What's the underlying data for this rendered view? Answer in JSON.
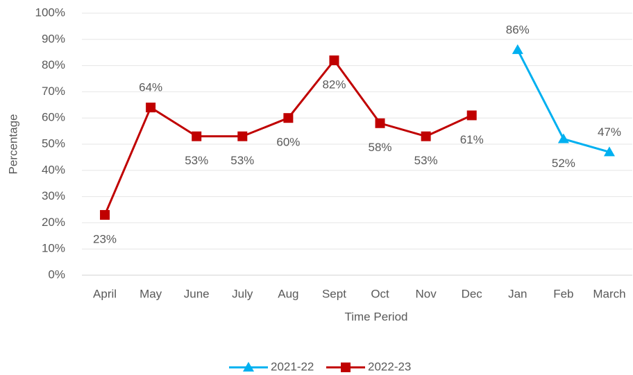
{
  "chart_data": {
    "type": "line",
    "x_label": "Time Period",
    "y_label": "Percentage",
    "categories": [
      "April",
      "May",
      "June",
      "July",
      "Aug",
      "Sept",
      "Oct",
      "Nov",
      "Dec",
      "Jan",
      "Feb",
      "March"
    ],
    "series": [
      {
        "name": "2021-22",
        "color": "#00b0f0",
        "marker": "triangle",
        "values": [
          null,
          null,
          null,
          null,
          null,
          null,
          null,
          null,
          null,
          86,
          52,
          47
        ],
        "value_labels": [
          null,
          null,
          null,
          null,
          null,
          null,
          null,
          null,
          null,
          "86%",
          "52%",
          "47%"
        ]
      },
      {
        "name": "2022-23",
        "color": "#c00000",
        "marker": "square",
        "values": [
          23,
          64,
          53,
          53,
          60,
          82,
          58,
          53,
          61,
          null,
          null,
          null
        ],
        "value_labels": [
          "23%",
          "64%",
          "53%",
          "53%",
          "60%",
          "82%",
          "58%",
          "53%",
          "61%",
          null,
          null,
          null
        ]
      }
    ],
    "ylim": [
      0,
      100
    ],
    "yticks": [
      {
        "value": 0,
        "label": "0%"
      },
      {
        "value": 10,
        "label": "10%"
      },
      {
        "value": 20,
        "label": "20%"
      },
      {
        "value": 30,
        "label": "30%"
      },
      {
        "value": 40,
        "label": "40%"
      },
      {
        "value": 50,
        "label": "50%"
      },
      {
        "value": 60,
        "label": "60%"
      },
      {
        "value": 70,
        "label": "70%"
      },
      {
        "value": 80,
        "label": "80%"
      },
      {
        "value": 90,
        "label": "90%"
      },
      {
        "value": 100,
        "label": "100%"
      }
    ],
    "grid": true,
    "legend": "bottom"
  }
}
